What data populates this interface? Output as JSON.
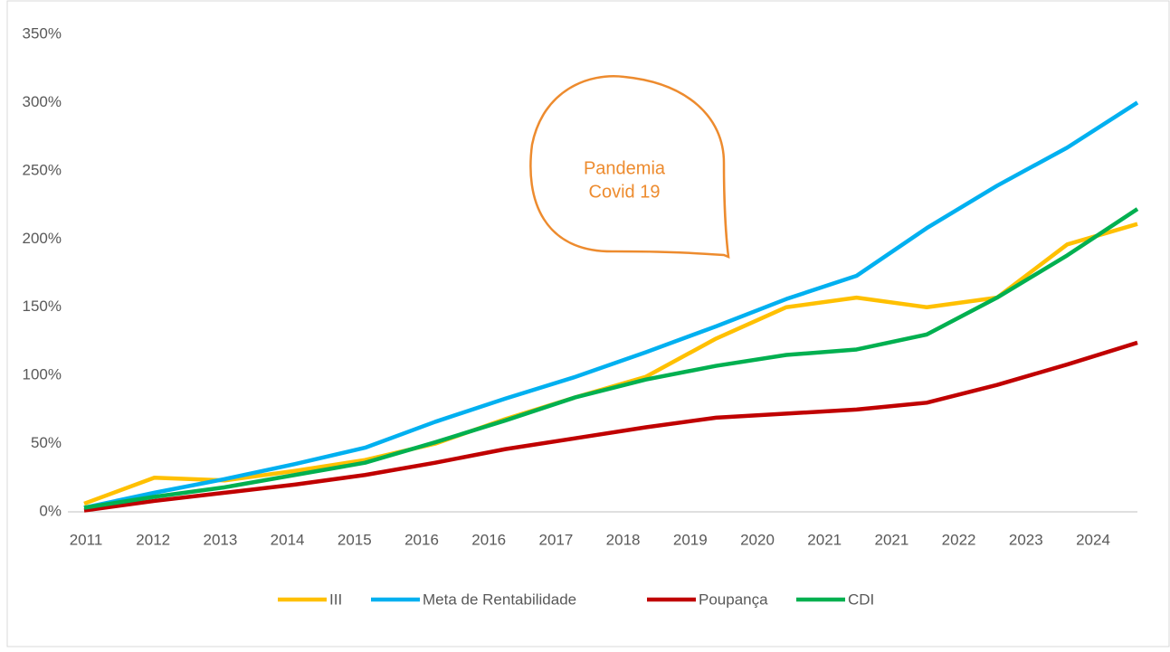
{
  "chart_data": {
    "type": "line",
    "categories": [
      "2011",
      "2012",
      "2013",
      "2014",
      "2015",
      "2016",
      "2016",
      "2017",
      "2018",
      "2019",
      "2020",
      "2021",
      "2021",
      "2022",
      "2023",
      "2024"
    ],
    "series": [
      {
        "name": "III",
        "color": "#ffc000",
        "values": [
          6,
          25,
          23,
          30,
          38,
          50,
          68,
          84,
          99,
          127,
          150,
          157,
          150,
          157,
          196,
          211
        ]
      },
      {
        "name": "Meta de Rentabilidade",
        "color": "#00b0f0",
        "values": [
          3,
          14,
          24,
          35,
          47,
          66,
          83,
          99,
          117,
          136,
          156,
          173,
          208,
          239,
          267,
          300
        ]
      },
      {
        "name": "Poupança",
        "color": "#c00000",
        "values": [
          1,
          8,
          14,
          20,
          27,
          36,
          46,
          54,
          62,
          69,
          72,
          75,
          80,
          93,
          108,
          124
        ]
      },
      {
        "name": "CDI",
        "color": "#00b050",
        "values": [
          3,
          11,
          18,
          27,
          36,
          51,
          67,
          84,
          97,
          107,
          115,
          119,
          130,
          157,
          188,
          222
        ]
      }
    ],
    "ylim": [
      0,
      350
    ],
    "yticks": [
      {
        "value": 0,
        "label": "0%"
      },
      {
        "value": 50,
        "label": "50%"
      },
      {
        "value": 100,
        "label": "100%"
      },
      {
        "value": 150,
        "label": "150%"
      },
      {
        "value": 200,
        "label": "200%"
      },
      {
        "value": 250,
        "label": "250%"
      },
      {
        "value": 300,
        "label": "300%"
      },
      {
        "value": 350,
        "label": "350%"
      }
    ],
    "annotation": [
      "Pandemia",
      "Covid 19"
    ],
    "legend": "bottom"
  }
}
